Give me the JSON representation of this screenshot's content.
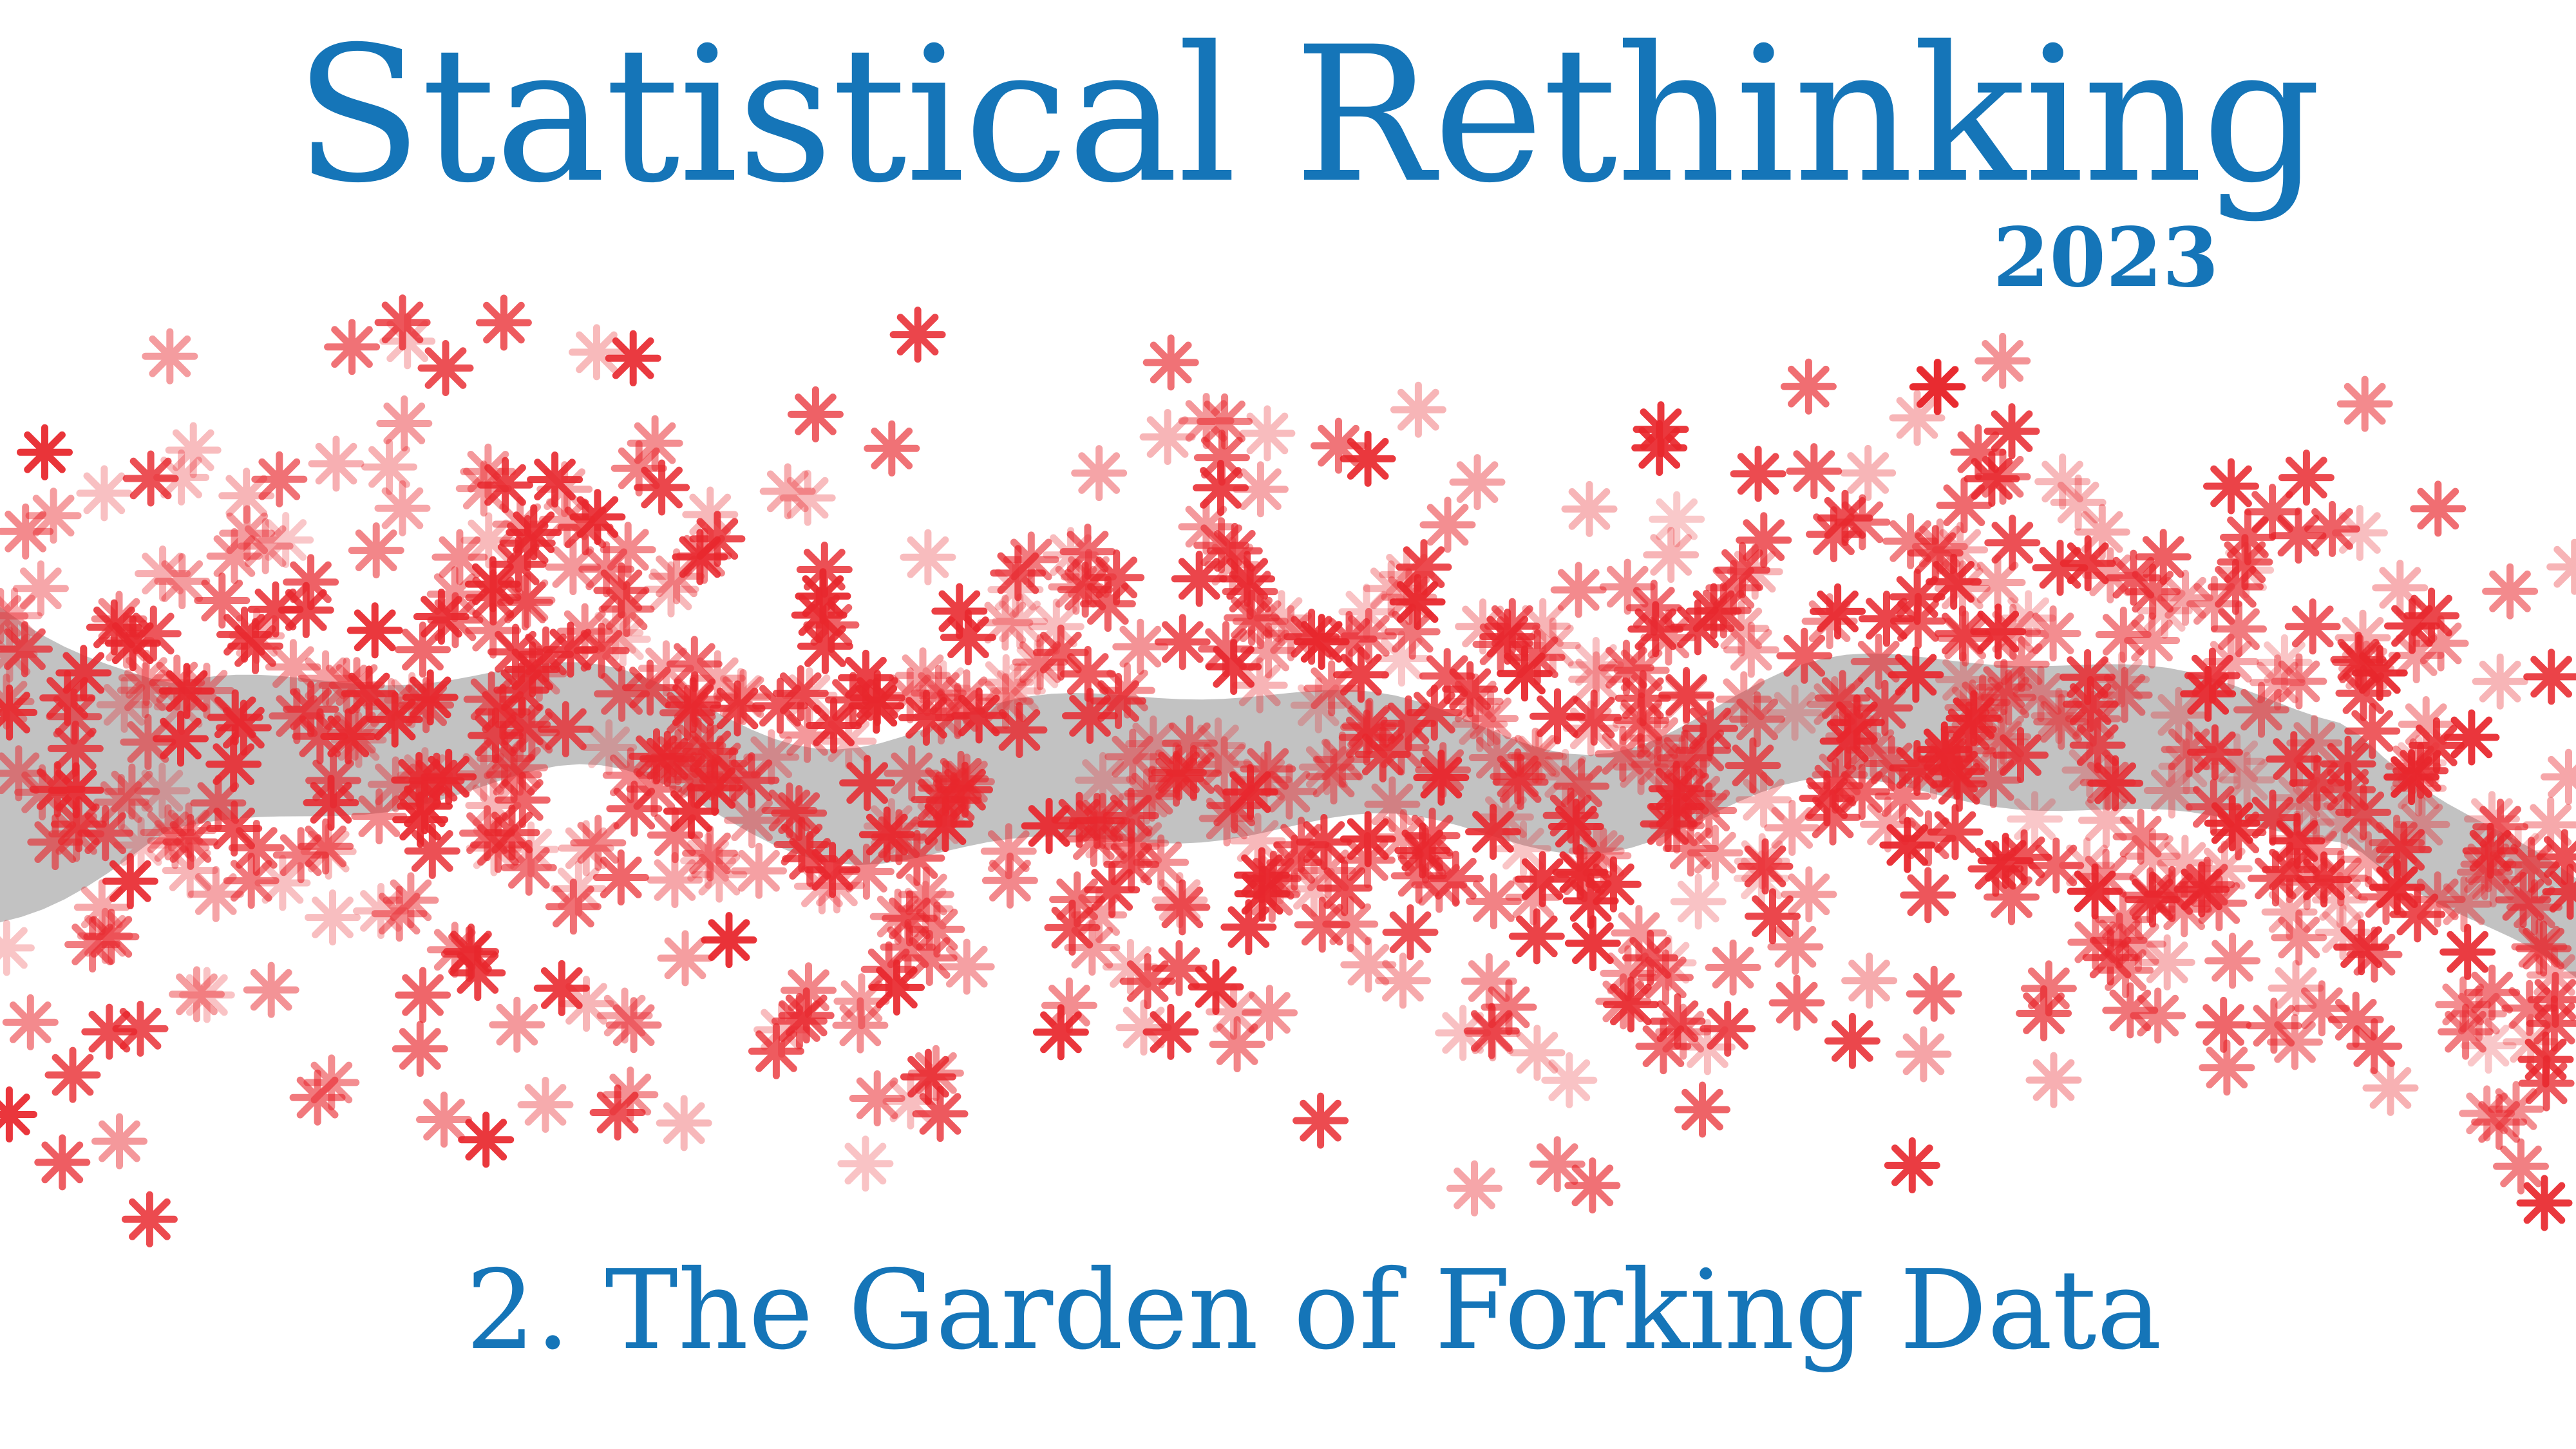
{
  "slide": {
    "title": "Statistical Rethinking",
    "year": "2023",
    "subtitle": "2. The Garden of Forking Data"
  },
  "colors": {
    "background": "#ffffff",
    "text_blue": "#1575b8",
    "star_red": "#e8272d",
    "band_gray": "#8f8f8f"
  },
  "icons": {
    "scatter_marker": "asterisk-star"
  }
}
